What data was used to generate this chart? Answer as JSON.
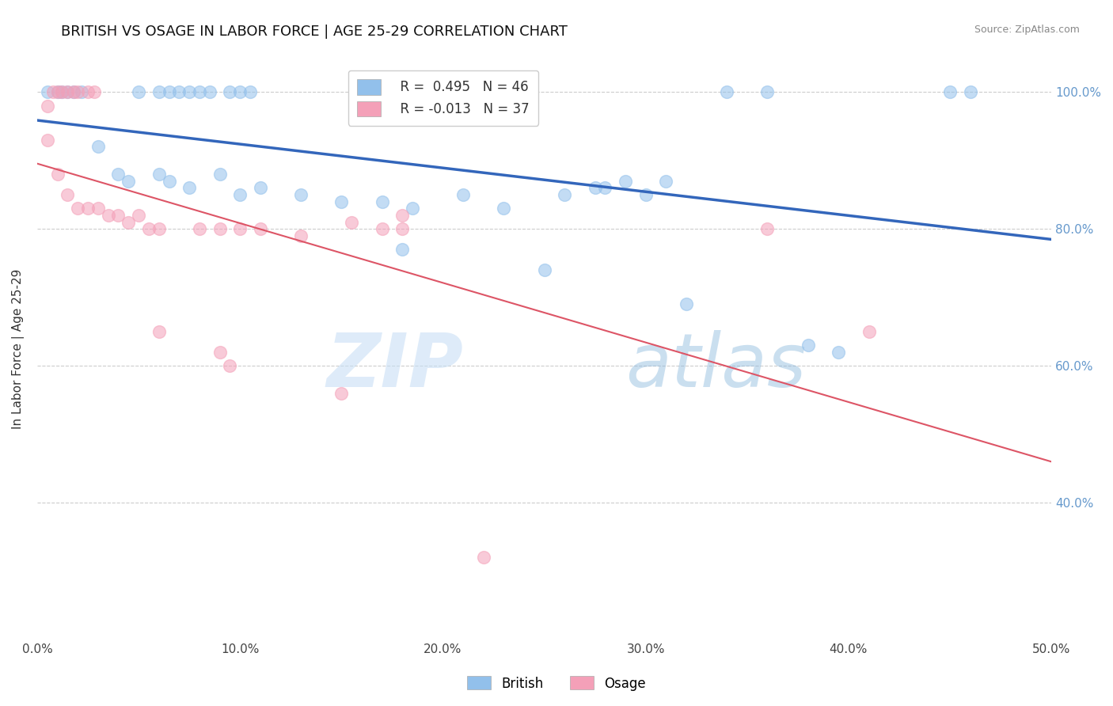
{
  "title": "BRITISH VS OSAGE IN LABOR FORCE | AGE 25-29 CORRELATION CHART",
  "source": "Source: ZipAtlas.com",
  "xlabel": "",
  "ylabel": "In Labor Force | Age 25-29",
  "xlim": [
    0.0,
    0.5
  ],
  "ylim": [
    0.2,
    1.05
  ],
  "xtick_labels": [
    "0.0%",
    "10.0%",
    "20.0%",
    "30.0%",
    "40.0%",
    "50.0%"
  ],
  "xtick_vals": [
    0.0,
    0.1,
    0.2,
    0.3,
    0.4,
    0.5
  ],
  "ytick_labels": [
    "40.0%",
    "60.0%",
    "80.0%",
    "100.0%"
  ],
  "ytick_vals": [
    0.4,
    0.6,
    0.8,
    1.0
  ],
  "grid_color": "#cccccc",
  "watermark_zip": "ZIP",
  "watermark_atlas": "atlas",
  "british_R": 0.495,
  "british_N": 46,
  "osage_R": -0.013,
  "osage_N": 37,
  "british_color": "#92c0eb",
  "osage_color": "#f4a0b8",
  "british_line_color": "#3366bb",
  "osage_line_color": "#dd5566",
  "british_points": [
    [
      0.005,
      1.0
    ],
    [
      0.01,
      1.0
    ],
    [
      0.012,
      1.0
    ],
    [
      0.015,
      1.0
    ],
    [
      0.018,
      1.0
    ],
    [
      0.022,
      1.0
    ],
    [
      0.05,
      1.0
    ],
    [
      0.06,
      1.0
    ],
    [
      0.065,
      1.0
    ],
    [
      0.07,
      1.0
    ],
    [
      0.075,
      1.0
    ],
    [
      0.08,
      1.0
    ],
    [
      0.085,
      1.0
    ],
    [
      0.095,
      1.0
    ],
    [
      0.1,
      1.0
    ],
    [
      0.105,
      1.0
    ],
    [
      0.34,
      1.0
    ],
    [
      0.36,
      1.0
    ],
    [
      0.45,
      1.0
    ],
    [
      0.46,
      1.0
    ],
    [
      0.03,
      0.92
    ],
    [
      0.04,
      0.88
    ],
    [
      0.045,
      0.87
    ],
    [
      0.06,
      0.88
    ],
    [
      0.065,
      0.87
    ],
    [
      0.075,
      0.86
    ],
    [
      0.09,
      0.88
    ],
    [
      0.1,
      0.85
    ],
    [
      0.11,
      0.86
    ],
    [
      0.13,
      0.85
    ],
    [
      0.15,
      0.84
    ],
    [
      0.17,
      0.84
    ],
    [
      0.185,
      0.83
    ],
    [
      0.21,
      0.85
    ],
    [
      0.23,
      0.83
    ],
    [
      0.26,
      0.85
    ],
    [
      0.275,
      0.86
    ],
    [
      0.28,
      0.86
    ],
    [
      0.29,
      0.87
    ],
    [
      0.3,
      0.85
    ],
    [
      0.31,
      0.87
    ],
    [
      0.18,
      0.77
    ],
    [
      0.25,
      0.74
    ],
    [
      0.32,
      0.69
    ],
    [
      0.38,
      0.63
    ],
    [
      0.395,
      0.62
    ]
  ],
  "osage_points": [
    [
      0.005,
      0.98
    ],
    [
      0.008,
      1.0
    ],
    [
      0.01,
      1.0
    ],
    [
      0.012,
      1.0
    ],
    [
      0.015,
      1.0
    ],
    [
      0.018,
      1.0
    ],
    [
      0.02,
      1.0
    ],
    [
      0.025,
      1.0
    ],
    [
      0.028,
      1.0
    ],
    [
      0.005,
      0.93
    ],
    [
      0.01,
      0.88
    ],
    [
      0.015,
      0.85
    ],
    [
      0.02,
      0.83
    ],
    [
      0.025,
      0.83
    ],
    [
      0.03,
      0.83
    ],
    [
      0.035,
      0.82
    ],
    [
      0.04,
      0.82
    ],
    [
      0.045,
      0.81
    ],
    [
      0.05,
      0.82
    ],
    [
      0.055,
      0.8
    ],
    [
      0.06,
      0.8
    ],
    [
      0.08,
      0.8
    ],
    [
      0.09,
      0.8
    ],
    [
      0.1,
      0.8
    ],
    [
      0.11,
      0.8
    ],
    [
      0.13,
      0.79
    ],
    [
      0.155,
      0.81
    ],
    [
      0.17,
      0.8
    ],
    [
      0.18,
      0.8
    ],
    [
      0.18,
      0.82
    ],
    [
      0.06,
      0.65
    ],
    [
      0.09,
      0.62
    ],
    [
      0.095,
      0.6
    ],
    [
      0.15,
      0.56
    ],
    [
      0.22,
      0.32
    ],
    [
      0.36,
      0.8
    ],
    [
      0.41,
      0.65
    ]
  ]
}
